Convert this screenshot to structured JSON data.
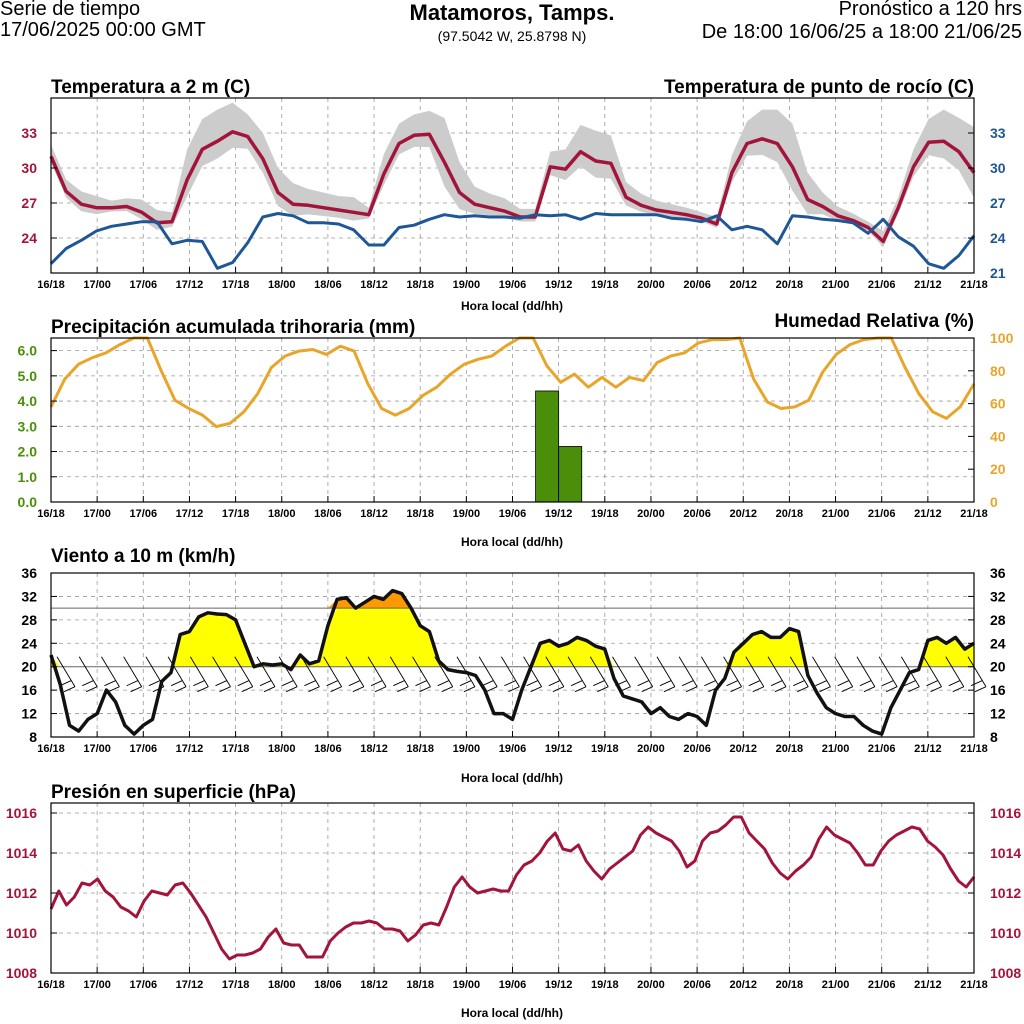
{
  "header": {
    "serie": "Serie de tiempo",
    "run_date": "17/06/2025 00:00 GMT",
    "location": "Matamoros, Tamps.",
    "coords": "(97.5042 W, 25.8798 N)",
    "forecast": "Pronóstico a 120 hrs",
    "range": "De 18:00 16/06/25 a 18:00 21/06/25"
  },
  "colors": {
    "temp": "#a3143a",
    "dew": "#1f5796",
    "precip": "#4a8e0a",
    "rh": "#e8a52a",
    "wind_line": "#111111",
    "wind_yellow": "#ffff00",
    "wind_orange": "#ff9900",
    "pressure": "#a3143a",
    "spread": "#cccccc"
  },
  "chart_data": [
    {
      "id": "temp",
      "type": "line",
      "title": "Temperatura a 2 m (C)",
      "title_right": "Temperatura de punto de rocío (C)",
      "xlabel": "Hora local (dd/hh)",
      "x_ticks": [
        "16/18",
        "17/00",
        "17/06",
        "17/12",
        "17/18",
        "18/00",
        "18/06",
        "18/12",
        "18/18",
        "19/00",
        "19/06",
        "19/12",
        "19/18",
        "20/00",
        "20/06",
        "20/12",
        "20/18",
        "21/00",
        "21/06",
        "21/12",
        "21/18"
      ],
      "ylim": [
        21,
        36
      ],
      "left_ticks": [
        24,
        27,
        30,
        33
      ],
      "right_ticks": [
        21,
        24,
        27,
        30,
        33
      ],
      "series": [
        {
          "name": "Temperatura",
          "values": [
            31,
            28,
            26.9,
            26.6,
            26.6,
            26.7,
            26.2,
            25.3,
            25.4,
            29,
            31.6,
            32.3,
            33.1,
            32.7,
            30.8,
            27.9,
            26.9,
            26.8,
            26.6,
            26.4,
            26.2,
            26,
            29.5,
            32.1,
            32.8,
            32.9,
            30.5,
            27.9,
            26.9,
            26.6,
            26.3,
            25.8,
            25.8,
            30.1,
            29.9,
            31.4,
            30.6,
            30.4,
            27.5,
            26.8,
            26.4,
            26.2,
            26,
            25.7,
            25.2,
            29.6,
            32.1,
            32.5,
            32.1,
            30.1,
            27.3,
            26.7,
            25.9,
            25.5,
            24.9,
            23.7,
            26.6,
            30.1,
            32.2,
            32.3,
            31.4,
            29.6
          ]
        },
        {
          "name": "Punto de rocío",
          "values": [
            21.8,
            23.1,
            23.8,
            24.6,
            25,
            25.2,
            25.4,
            25.4,
            23.5,
            23.8,
            23.7,
            21.4,
            21.9,
            23.6,
            25.8,
            26.1,
            25.9,
            25.3,
            25.3,
            25.2,
            24.7,
            23.4,
            23.4,
            24.9,
            25.1,
            25.6,
            26,
            25.8,
            25.9,
            25.8,
            25.8,
            25.7,
            26,
            25.9,
            26,
            25.6,
            26.1,
            26,
            26,
            26,
            26,
            25.7,
            25.6,
            25.4,
            25.9,
            24.7,
            25,
            24.7,
            23.5,
            25.9,
            25.8,
            25.6,
            25.5,
            25.3,
            24.4,
            25.6,
            24.1,
            23.3,
            21.8,
            21.4,
            22.5,
            24.2
          ]
        }
      ],
      "band_upper": [
        32,
        29,
        28,
        27.6,
        27.2,
        27.4,
        27.3,
        26.4,
        26.2,
        31.6,
        34.2,
        35,
        35.6,
        34.6,
        33,
        30,
        28.7,
        28.2,
        27.9,
        27.6,
        27.5,
        26.6,
        31.2,
        33.8,
        34.6,
        34.9,
        34.3,
        30.5,
        28.4,
        27.8,
        27.4,
        26.5,
        26.5,
        31.4,
        31.6,
        33.7,
        33.2,
        32.8,
        28.8,
        27.8,
        27.2,
        26.9,
        26.6,
        26.2,
        25.8,
        31.1,
        34,
        35,
        35,
        33.8,
        29.6,
        27.9,
        26.7,
        26.1,
        25.4,
        24.6,
        27.5,
        31.6,
        34.2,
        35,
        34.3,
        33.5
      ]
    },
    {
      "id": "precip_rh",
      "type": "bar",
      "title": "Precipitación acumulada trihoraria (mm)",
      "title_right": "Humedad Relativa (%)",
      "xlabel": "Hora local (dd/hh)",
      "ylim": [
        0,
        6.5
      ],
      "left_ticks": [
        "0.0",
        "1.0",
        "2.0",
        "3.0",
        "4.0",
        "5.0",
        "6.0"
      ],
      "right_ticks": [
        0,
        20,
        40,
        60,
        80,
        100
      ],
      "bars": [
        {
          "from": "19/09",
          "to": "19/12",
          "value": 4.4
        },
        {
          "from": "19/12",
          "to": "19/15",
          "value": 2.2
        }
      ],
      "rh_series": [
        58,
        75,
        84,
        88,
        91,
        96,
        100,
        100,
        80,
        62,
        57,
        53,
        46,
        48,
        55,
        66,
        82,
        89,
        92,
        93,
        90,
        95,
        92,
        72,
        57,
        53,
        57,
        65,
        70,
        78,
        84,
        87,
        89,
        95,
        100,
        100,
        83,
        73,
        78,
        70,
        76,
        70,
        76,
        74,
        85,
        89,
        91,
        97,
        99,
        99,
        100,
        75,
        61,
        57,
        58,
        62,
        79,
        90,
        96,
        99,
        100,
        100,
        82,
        66,
        55,
        51,
        58,
        72
      ]
    },
    {
      "id": "wind",
      "type": "area",
      "title": "Viento a 10 m (km/h)",
      "xlabel": "Hora local (dd/hh)",
      "ylim": [
        8,
        36
      ],
      "ticks": [
        8,
        12,
        16,
        20,
        24,
        28,
        32,
        36
      ],
      "thresholds": [
        20,
        30
      ],
      "values": [
        22,
        17,
        10,
        9,
        11,
        12,
        16,
        14,
        10,
        8.5,
        10,
        11,
        17.5,
        19,
        25.5,
        26,
        28.5,
        29.2,
        29,
        28.9,
        28,
        24,
        20,
        20.5,
        20.3,
        20.5,
        19.5,
        22,
        20.5,
        21,
        27,
        31.5,
        31.8,
        30,
        31,
        32,
        31.5,
        33,
        32.5,
        30,
        27,
        26,
        21,
        19.5,
        19.2,
        19,
        18.5,
        16,
        12,
        12,
        11,
        16,
        20,
        24,
        24.5,
        23.5,
        24,
        25,
        24.5,
        23.5,
        23,
        18,
        15,
        14.5,
        14,
        12,
        13,
        11.5,
        11,
        12,
        11.5,
        10,
        16,
        18,
        22.5,
        24,
        25.5,
        26,
        25,
        25,
        26.5,
        26,
        18.5,
        15.5,
        13,
        12,
        11.5,
        11.5,
        10,
        9,
        8.5,
        13,
        16,
        19,
        19.5,
        24.5,
        25,
        24,
        25,
        23,
        24
      ]
    },
    {
      "id": "pressure",
      "type": "line",
      "title": "Presión en superficie (hPa)",
      "xlabel": "Hora local (dd/hh)",
      "ylim": [
        1008,
        1016.5
      ],
      "ticks": [
        1008,
        1010,
        1012,
        1014,
        1016
      ],
      "values": [
        1011.2,
        1012.1,
        1011.4,
        1011.8,
        1012.5,
        1012.4,
        1012.7,
        1012.1,
        1011.8,
        1011.3,
        1011.1,
        1010.8,
        1011.6,
        1012.1,
        1012,
        1011.9,
        1012.4,
        1012.5,
        1012,
        1011.4,
        1010.8,
        1010,
        1009.2,
        1008.7,
        1008.9,
        1008.9,
        1009,
        1009.2,
        1009.8,
        1010.2,
        1009.5,
        1009.4,
        1009.4,
        1008.8,
        1008.8,
        1008.8,
        1009.6,
        1010,
        1010.3,
        1010.5,
        1010.5,
        1010.6,
        1010.5,
        1010.2,
        1010.2,
        1010.1,
        1009.6,
        1009.9,
        1010.4,
        1010.5,
        1010.4,
        1011.3,
        1012.3,
        1012.8,
        1012.3,
        1012,
        1012.1,
        1012.2,
        1012.1,
        1012.1,
        1012.9,
        1013.4,
        1013.6,
        1014,
        1014.6,
        1015,
        1014.2,
        1014.1,
        1014.4,
        1013.6,
        1013.1,
        1012.7,
        1013.2,
        1013.5,
        1013.8,
        1014.1,
        1014.9,
        1015.3,
        1015,
        1014.8,
        1014.6,
        1014.1,
        1013.3,
        1013.6,
        1014.6,
        1015,
        1015.1,
        1015.4,
        1015.8,
        1015.8,
        1015,
        1014.6,
        1014.2,
        1013.5,
        1013,
        1012.7,
        1013.1,
        1013.4,
        1013.8,
        1014.7,
        1015.3,
        1014.9,
        1014.7,
        1014.5,
        1014,
        1013.4,
        1013.4,
        1014.1,
        1014.6,
        1014.9,
        1015.1,
        1015.3,
        1015.2,
        1014.6,
        1014.3,
        1013.9,
        1013.2,
        1012.6,
        1012.3,
        1012.8
      ]
    }
  ]
}
